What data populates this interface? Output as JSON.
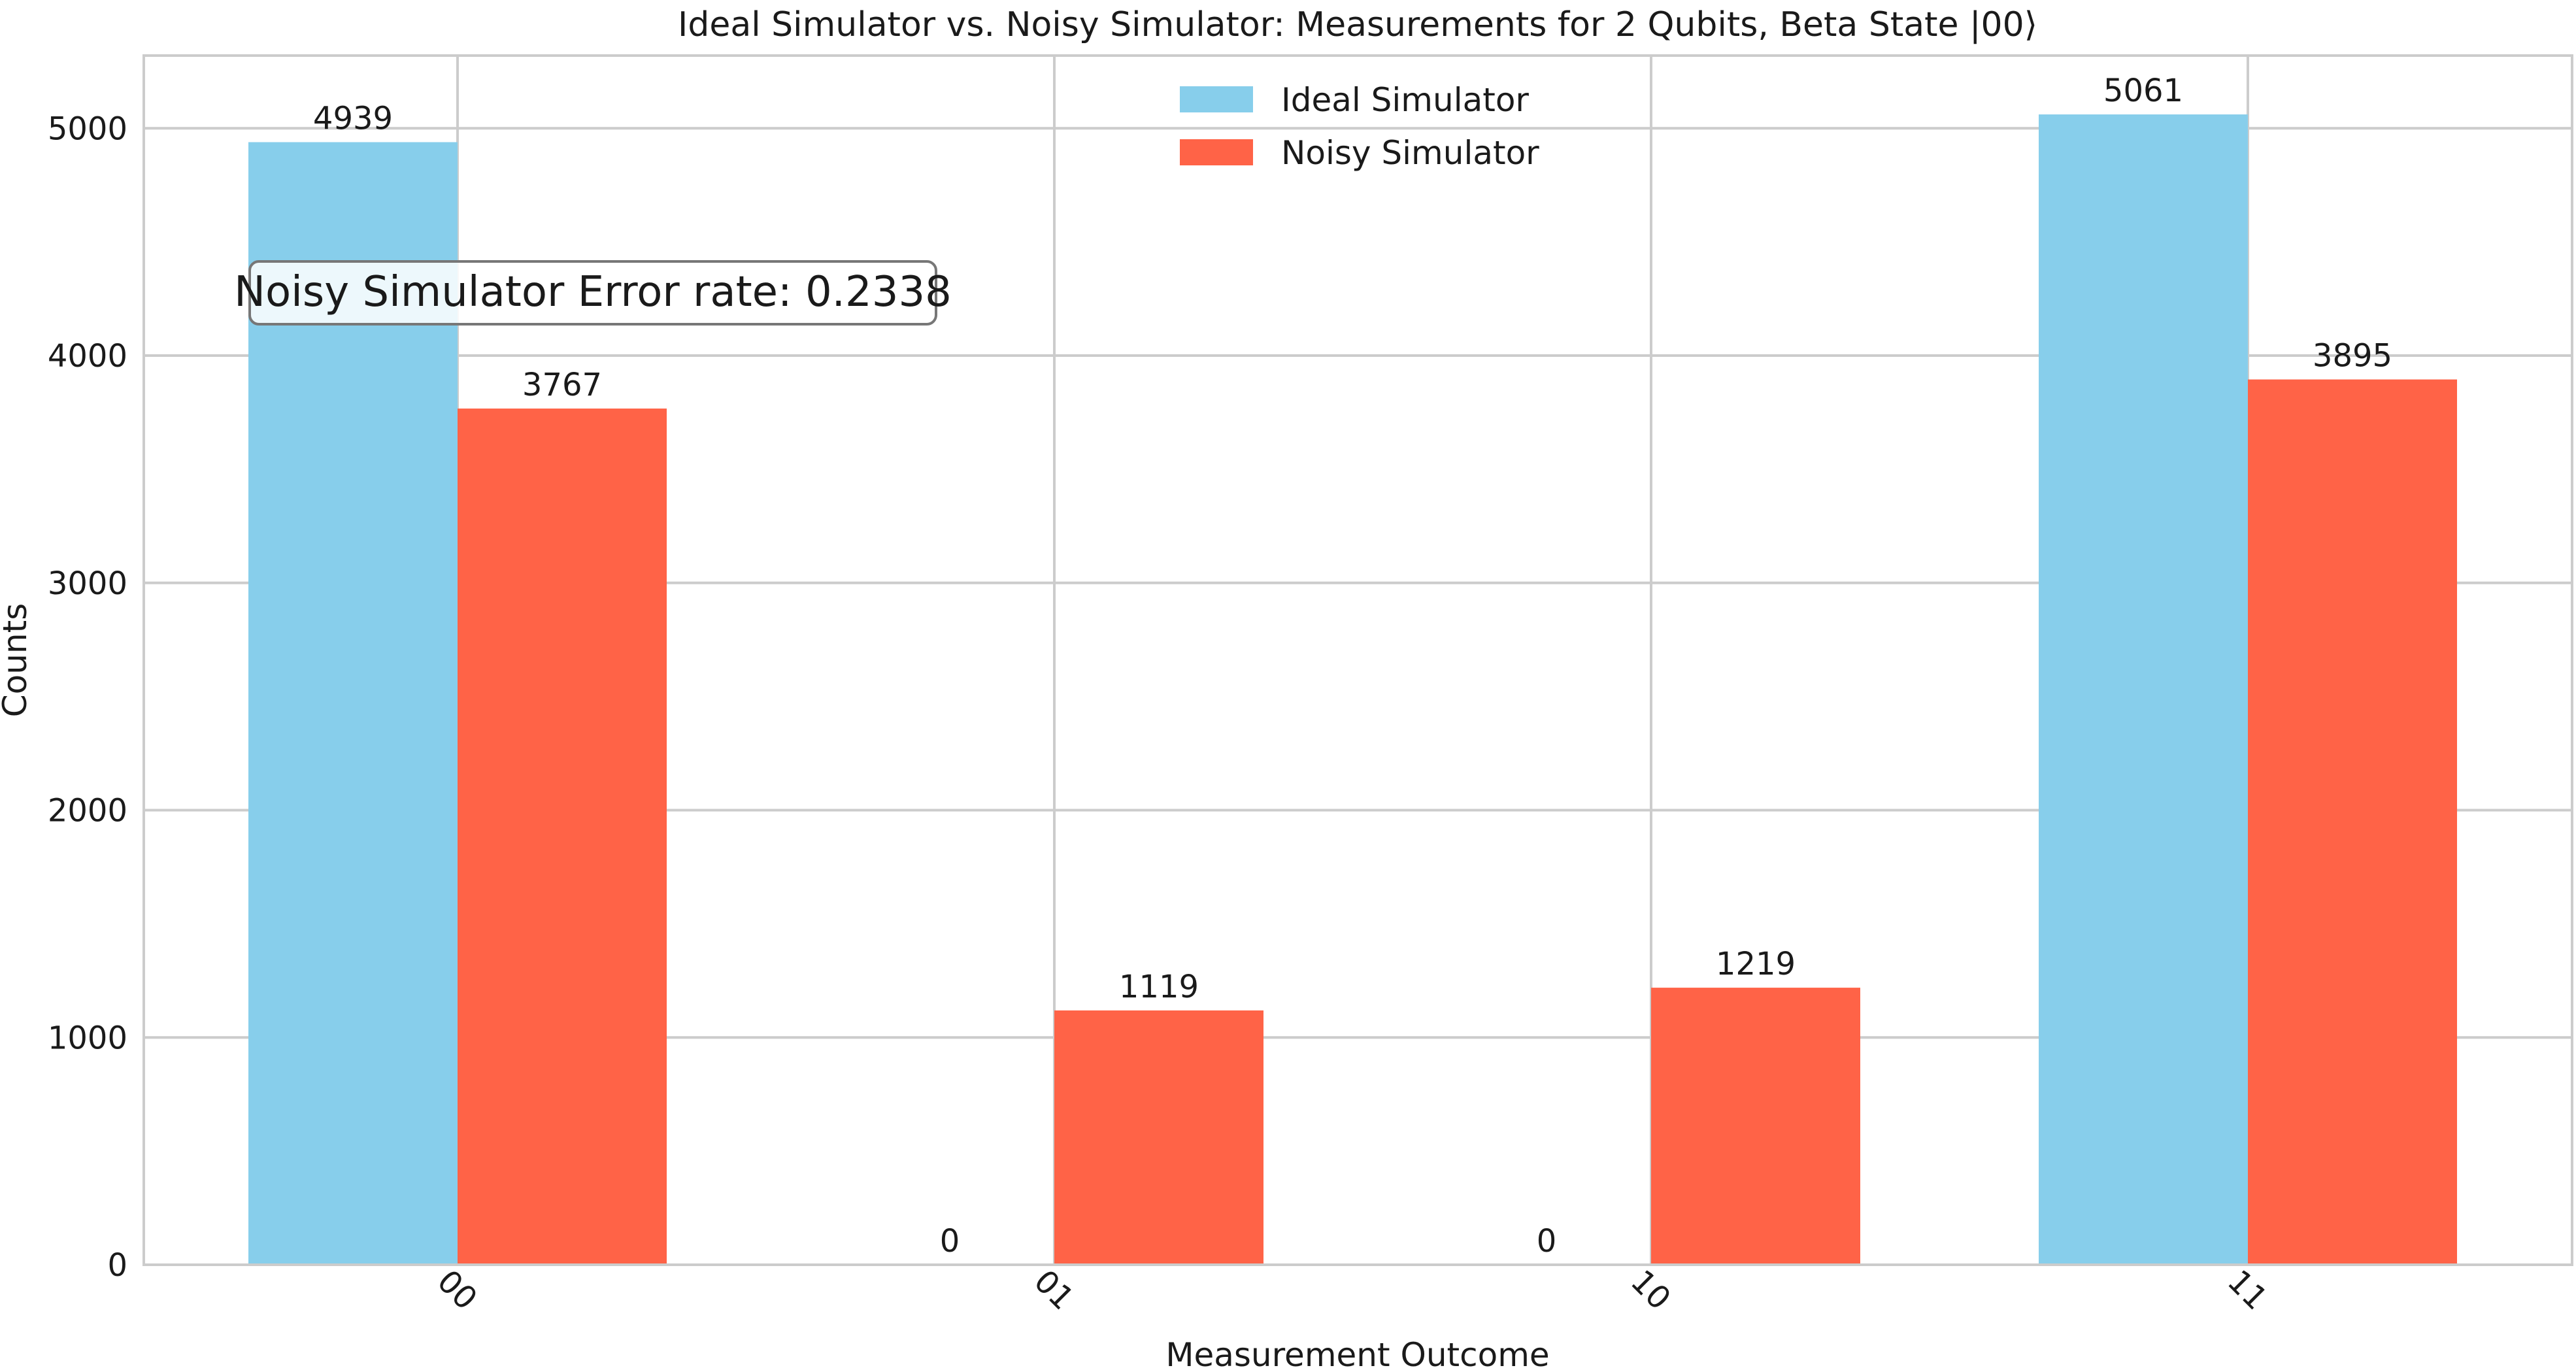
{
  "chart_data": {
    "type": "bar",
    "title": "Ideal Simulator vs. Noisy Simulator: Measurements for 2 Qubits, Beta State |00⟩",
    "xlabel": "Measurement Outcome",
    "ylabel": "Counts",
    "categories": [
      "00",
      "01",
      "10",
      "11"
    ],
    "series": [
      {
        "name": "Ideal Simulator",
        "values": [
          4939,
          0,
          0,
          5061
        ],
        "color": "#87CEEB"
      },
      {
        "name": "Noisy Simulator",
        "values": [
          3767,
          1119,
          1219,
          3895
        ],
        "color": "#FF6347"
      }
    ],
    "ylim": [
      0,
      5320
    ],
    "yticks": [
      0,
      1000,
      2000,
      3000,
      4000,
      5000
    ],
    "grid": true,
    "legend_position": "top-center",
    "annotation": "Noisy Simulator Error rate: 0.2338",
    "xtick_rotation": 45
  }
}
